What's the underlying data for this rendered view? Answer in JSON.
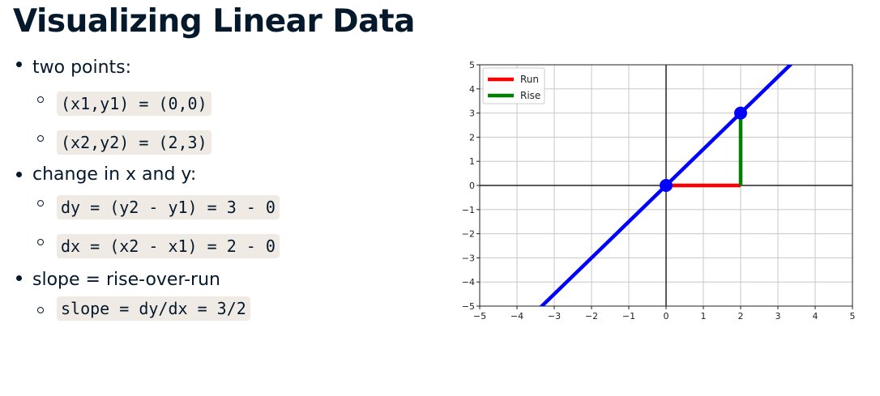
{
  "title": "Visualizing Linear Data",
  "bullets": [
    {
      "text": "two points:",
      "subs": [
        "(x1,y1) = (0,0)",
        "(x2,y2) = (2,3)"
      ]
    },
    {
      "text": "change in x and y:",
      "subs": [
        "dy = (y2 - y1) = 3 - 0",
        "dx = (x2 - x1) = 2 - 0"
      ]
    },
    {
      "text": "slope = rise-over-run",
      "subs": [
        "slope = dy/dx = 3/2"
      ]
    }
  ],
  "chart_data": {
    "type": "line",
    "xlim": [
      -5,
      5
    ],
    "ylim": [
      -5,
      5
    ],
    "x_ticks": [
      -5,
      -4,
      -3,
      -2,
      -1,
      0,
      1,
      2,
      3,
      4,
      5
    ],
    "y_ticks": [
      -5,
      -4,
      -3,
      -2,
      -1,
      0,
      1,
      2,
      3,
      4,
      5
    ],
    "x_tick_labels": [
      "−5",
      "−4",
      "−3",
      "−2",
      "−1",
      "0",
      "1",
      "2",
      "3",
      "4",
      "5"
    ],
    "y_tick_labels": [
      "−5",
      "−4",
      "−3",
      "−2",
      "−1",
      "0",
      "1",
      "2",
      "3",
      "4",
      "5"
    ],
    "grid": true,
    "legend_position": "top-left",
    "line": {
      "slope": 1.5,
      "intercept": 0,
      "color": "#0000ff"
    },
    "points": [
      {
        "x": 0,
        "y": 0,
        "color": "#0000ff"
      },
      {
        "x": 2,
        "y": 3,
        "color": "#0000ff"
      }
    ],
    "series": [
      {
        "name": "Run",
        "color": "#ff0000",
        "x": [
          0,
          2
        ],
        "y": [
          0,
          0
        ]
      },
      {
        "name": "Rise",
        "color": "#008000",
        "x": [
          2,
          2
        ],
        "y": [
          0,
          3
        ]
      }
    ]
  }
}
